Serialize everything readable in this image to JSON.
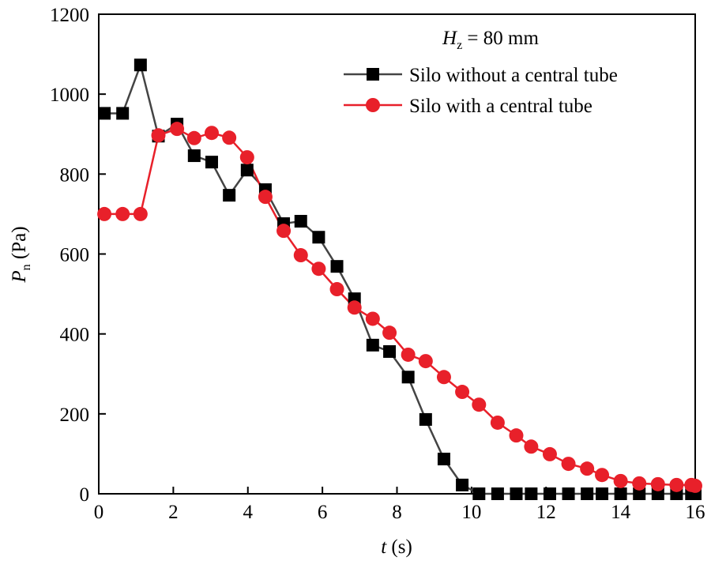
{
  "chart_data": {
    "type": "line",
    "title": "",
    "annotation": {
      "var": "H",
      "sub": "z",
      "rest": " = 80 mm"
    },
    "xlabel": {
      "var": "t",
      "rest": " (s)"
    },
    "ylabel": {
      "var": "P",
      "sub": "n",
      "rest": " (Pa)"
    },
    "xlim": [
      0,
      16
    ],
    "ylim": [
      0,
      1200
    ],
    "xticks": [
      0,
      2,
      4,
      6,
      8,
      10,
      12,
      14,
      16
    ],
    "yticks": [
      0,
      200,
      400,
      600,
      800,
      1000,
      1200
    ],
    "grid": false,
    "legend_position": "top-right",
    "x": [
      0.15,
      0.64,
      1.12,
      1.6,
      2.1,
      2.56,
      3.03,
      3.5,
      3.98,
      4.47,
      4.96,
      5.42,
      5.9,
      6.39,
      6.86,
      7.35,
      7.8,
      8.3,
      8.77,
      9.26,
      9.75,
      10.2,
      10.7,
      11.2,
      11.6,
      12.1,
      12.6,
      13.1,
      13.5,
      14.0,
      14.5,
      15.0,
      15.5,
      15.9,
      16.0
    ],
    "series": [
      {
        "name": "Silo without a central tube",
        "color": "#000000",
        "line_color": "#444444",
        "marker": "square",
        "values": [
          952,
          952,
          1073,
          895,
          925,
          846,
          830,
          747,
          810,
          761,
          676,
          682,
          642,
          569,
          488,
          372,
          356,
          292,
          186,
          87,
          22,
          0,
          0,
          0,
          0,
          0,
          0,
          0,
          0,
          0,
          0,
          0,
          0,
          0,
          0
        ]
      },
      {
        "name": "Silo with a central tube",
        "color": "#e8202a",
        "line_color": "#e8202a",
        "marker": "circle",
        "values": [
          700,
          700,
          700,
          897,
          913,
          890,
          903,
          891,
          842,
          743,
          658,
          597,
          563,
          512,
          466,
          438,
          403,
          348,
          332,
          292,
          255,
          223,
          178,
          146,
          118,
          99,
          75,
          63,
          47,
          32,
          26,
          24,
          22,
          22,
          20
        ]
      }
    ]
  }
}
